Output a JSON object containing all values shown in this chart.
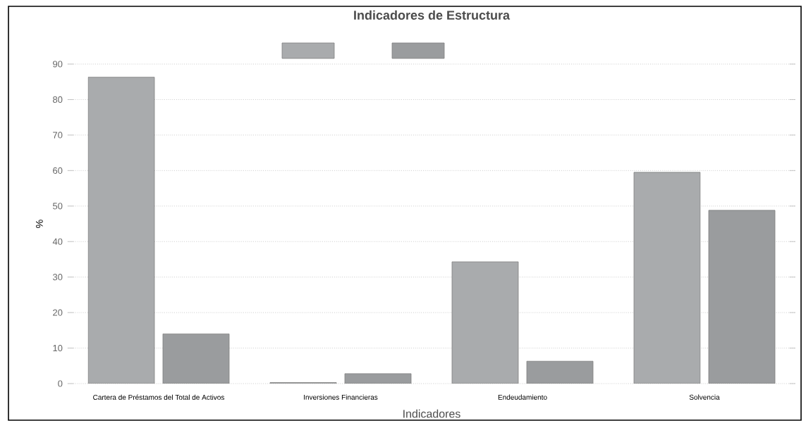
{
  "chart_data": {
    "type": "bar",
    "title": "Indicadores de Estructura",
    "xlabel": "Indicadores",
    "ylabel": "%",
    "categories": [
      "Cartera de Préstamos del Total de Activos",
      "Inversiones Financieras",
      "Endeudamiento",
      "Solvencia"
    ],
    "series": [
      {
        "color": "#a9abad",
        "values": [
          86.3,
          0.3,
          34.3,
          59.5
        ]
      },
      {
        "color": "#9a9c9e",
        "values": [
          14,
          2.8,
          6.3,
          48.8
        ]
      }
    ],
    "ylim": [
      0,
      90
    ],
    "yticks": [
      0,
      10,
      20,
      30,
      40,
      50,
      60,
      70,
      80,
      90
    ],
    "grid": "y"
  }
}
